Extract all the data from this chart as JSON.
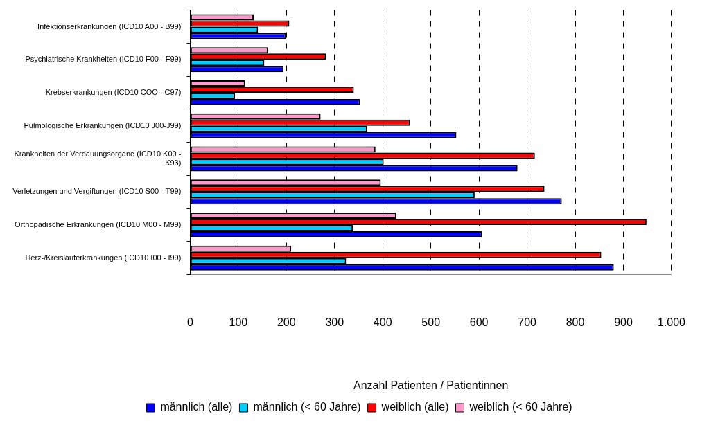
{
  "chart_data": {
    "type": "bar",
    "orientation": "horizontal",
    "xlabel": "Anzahl Patienten / Patientinnen",
    "categories": [
      "Infektionserkrankungen (ICD10 A00 - B99)",
      "Psychiatrische Krankheiten (ICD10 F00 - F99)",
      "Krebserkrankungen (ICD10 COO - C97)",
      "Pulmologische Erkrankungen (ICD10 J00-J99)",
      "Krankheiten der Verdauungsorgane (ICD10 K00 - K93)",
      "Verletzungen und Vergiftungen (ICD10 S00 - T99)",
      "Orthopädische Erkrankungen (ICD10 M00 - M99)",
      "Herz-/Kreislauferkrankungen (ICD10 I00 - I99)"
    ],
    "series": [
      {
        "name": "männlich (alle)",
        "color": "#0000ff",
        "values": [
          199,
          194,
          353,
          553,
          680,
          772,
          606,
          880
        ]
      },
      {
        "name": "männlich (< 60 Jahre)",
        "color": "#00ccff",
        "values": [
          141,
          154,
          93,
          368,
          402,
          591,
          338,
          324
        ]
      },
      {
        "name": "weiblich (alle)",
        "color": "#ff0000",
        "values": [
          206,
          282,
          340,
          457,
          716,
          736,
          948,
          854
        ]
      },
      {
        "name": "weiblich (< 60 Jahre)",
        "color": "#ff99cc",
        "values": [
          132,
          162,
          114,
          271,
          385,
          396,
          428,
          210
        ]
      }
    ],
    "xlim": [
      0,
      1000
    ],
    "xticks": [
      0,
      100,
      200,
      300,
      400,
      500,
      600,
      700,
      800,
      900,
      {
        "value": 1000,
        "label": "1.000"
      }
    ],
    "grid": "x",
    "legend": "bottom"
  }
}
